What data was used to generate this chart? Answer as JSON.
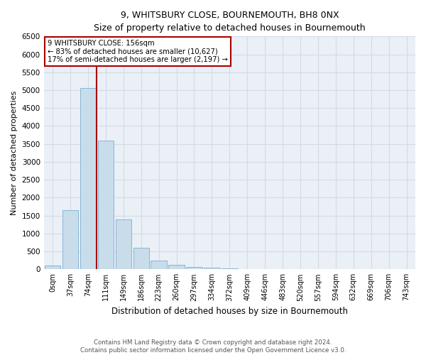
{
  "title": "9, WHITSBURY CLOSE, BOURNEMOUTH, BH8 0NX",
  "subtitle": "Size of property relative to detached houses in Bournemouth",
  "xlabel": "Distribution of detached houses by size in Bournemouth",
  "ylabel": "Number of detached properties",
  "footnote1": "Contains HM Land Registry data © Crown copyright and database right 2024.",
  "footnote2": "Contains public sector information licensed under the Open Government Licence v3.0.",
  "annotation_line1": "9 WHITSBURY CLOSE: 156sqm",
  "annotation_line2": "← 83% of detached houses are smaller (10,627)",
  "annotation_line3": "17% of semi-detached houses are larger (2,197) →",
  "bar_color": "#c9dcea",
  "bar_edge_color": "#7bafd4",
  "marker_color": "#aa0000",
  "background_color": "#eaf0f6",
  "grid_color": "#d0dce8",
  "categories": [
    "0sqm",
    "37sqm",
    "74sqm",
    "111sqm",
    "149sqm",
    "186sqm",
    "223sqm",
    "260sqm",
    "297sqm",
    "334sqm",
    "372sqm",
    "409sqm",
    "446sqm",
    "483sqm",
    "520sqm",
    "557sqm",
    "594sqm",
    "632sqm",
    "669sqm",
    "706sqm",
    "743sqm"
  ],
  "values": [
    100,
    1650,
    5050,
    3600,
    1400,
    600,
    250,
    130,
    75,
    40,
    20,
    10,
    5,
    2,
    1,
    1,
    0,
    0,
    0,
    0,
    0
  ],
  "marker_bin_index": 2,
  "ylim": [
    0,
    6500
  ],
  "yticks": [
    0,
    500,
    1000,
    1500,
    2000,
    2500,
    3000,
    3500,
    4000,
    4500,
    5000,
    5500,
    6000,
    6500
  ]
}
